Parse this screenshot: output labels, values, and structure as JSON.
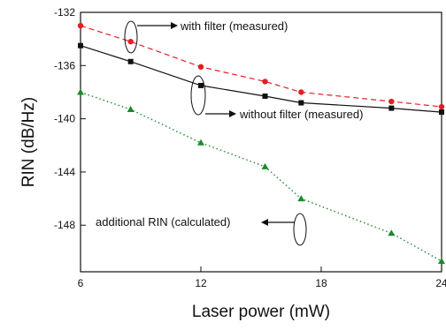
{
  "chart_data": {
    "type": "line",
    "title": "",
    "xlabel": "Laser power (mW)",
    "ylabel": "RIN (dB/Hz)",
    "xlim": [
      6,
      24
    ],
    "ylim": [
      -151.5,
      -132
    ],
    "xticks": [
      6,
      12,
      18,
      24
    ],
    "yticks": [
      -132,
      -136,
      -140,
      -144,
      -148
    ],
    "grid": false,
    "series": [
      {
        "key": "with_filter",
        "color": "#e31e24",
        "marker": "circle",
        "line_style": "dashed",
        "x": [
          6,
          8.5,
          12,
          15.2,
          17,
          21.5,
          24
        ],
        "y": [
          -133.0,
          -134.2,
          -136.1,
          -137.2,
          -138.0,
          -138.7,
          -139.1
        ]
      },
      {
        "key": "without_filter",
        "color": "#111111",
        "marker": "square",
        "line_style": "solid",
        "x": [
          6,
          8.5,
          12,
          15.2,
          17,
          21.5,
          24
        ],
        "y": [
          -134.5,
          -135.7,
          -137.5,
          -138.3,
          -138.8,
          -139.2,
          -139.5
        ]
      },
      {
        "key": "additional_rin",
        "color": "#1a8a2a",
        "marker": "triangle",
        "line_style": "dotted",
        "x": [
          6,
          8.5,
          12,
          15.2,
          17,
          21.5,
          24
        ],
        "y": [
          -138.0,
          -139.3,
          -141.8,
          -143.6,
          -146.0,
          -148.6,
          -150.7
        ]
      }
    ],
    "annotations": [
      {
        "text": "with filter (measured)",
        "series": "with_filter"
      },
      {
        "text": "without filter (measured)",
        "series": "without_filter"
      },
      {
        "text": "additional RIN (calculated)",
        "series": "additional_rin"
      }
    ]
  }
}
